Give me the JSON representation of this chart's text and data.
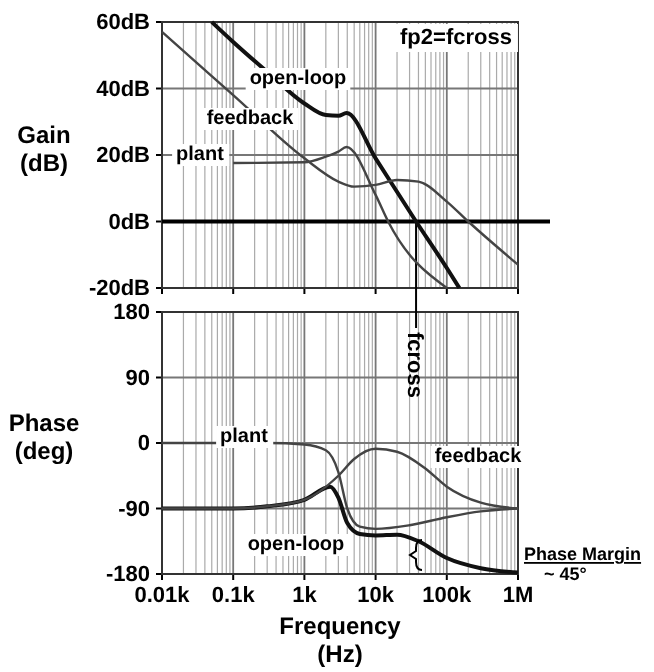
{
  "chart_data": [
    {
      "type": "line",
      "ylabel": "Gain\n(dB)",
      "log": "x",
      "xlim": [
        10,
        1000000
      ],
      "xticks": [
        10,
        100,
        1000,
        10000,
        100000,
        1000000
      ],
      "ylim": [
        -20,
        60
      ],
      "yticks": [
        {
          "value": -20,
          "label": "-20dB"
        },
        {
          "value": 0,
          "label": "0dB"
        },
        {
          "value": 20,
          "label": "20dB"
        },
        {
          "value": 40,
          "label": "40dB"
        },
        {
          "value": 60,
          "label": "60dB"
        }
      ],
      "tick_labels": "y",
      "grid": true,
      "line_style": "solid",
      "series": [
        {
          "name": "open-loop",
          "color": "#111111",
          "x": [
            50,
            100,
            300,
            1000,
            2000,
            3000,
            3900,
            10000,
            37000,
            100000,
            150000
          ],
          "values": [
            60,
            54,
            45,
            35.5,
            32,
            31.8,
            32.6,
            19,
            0,
            -14,
            -20
          ]
        },
        {
          "name": "feedback",
          "color": "#444444",
          "x": [
            10,
            100,
            1000,
            3000,
            5000,
            10000,
            20000,
            40000,
            100000,
            200000,
            1000000
          ],
          "values": [
            57,
            38,
            19,
            12,
            10.5,
            11,
            12.5,
            12,
            6,
            0,
            -13
          ]
        },
        {
          "name": "plant",
          "color": "#444444",
          "x": [
            100,
            1000,
            2000,
            3000,
            3900,
            10000,
            15000,
            100000
          ],
          "values": [
            17.6,
            17.8,
            19.5,
            21,
            22.4,
            8,
            0,
            -20
          ]
        }
      ],
      "ref_lines": [
        {
          "axis": "y",
          "value": 0,
          "label": null
        },
        {
          "axis": "x",
          "value": 37000,
          "label": null
        }
      ],
      "annotations": [
        "fp2=fcross"
      ]
    },
    {
      "type": "line",
      "ylabel": "Phase\n(deg)",
      "xlabel": "Frequency\n(Hz)",
      "log": "x",
      "xlim": [
        10,
        1000000
      ],
      "xticks": [
        {
          "value": 10,
          "label": "0.01k"
        },
        {
          "value": 100,
          "label": "0.1k"
        },
        {
          "value": 1000,
          "label": "1k"
        },
        {
          "value": 10000,
          "label": "10k"
        },
        {
          "value": 100000,
          "label": "100k"
        },
        {
          "value": 1000000,
          "label": "1M"
        }
      ],
      "ylim": [
        -180,
        180
      ],
      "yticks": [
        -180,
        -90,
        0,
        90,
        180
      ],
      "grid": true,
      "line_style": "solid",
      "series": [
        {
          "name": "open-loop",
          "color": "#111111",
          "x": [
            10,
            100,
            300,
            1000,
            2300,
            3000,
            4000,
            6000,
            10000,
            20000,
            40000,
            100000,
            300000,
            1000000
          ],
          "values": [
            -90,
            -90,
            -87,
            -78,
            -60,
            -75,
            -110,
            -125,
            -127,
            -126,
            -135,
            -158,
            -172,
            -178
          ]
        },
        {
          "name": "feedback",
          "color": "#444444",
          "x": [
            10,
            100,
            300,
            1000,
            3000,
            5000,
            10000,
            20000,
            50000,
            100000,
            300000,
            1000000
          ],
          "values": [
            -90,
            -90,
            -87,
            -78,
            -45,
            -22,
            -8,
            -12,
            -35,
            -60,
            -82,
            -90
          ]
        },
        {
          "name": "plant",
          "color": "#444444",
          "x": [
            10,
            300,
            1000,
            2000,
            3000,
            4000,
            6000,
            10000,
            30000,
            100000,
            300000,
            1000000
          ],
          "values": [
            0,
            0,
            -2,
            -10,
            -40,
            -90,
            -115,
            -118,
            -113,
            -102,
            -94,
            -90
          ]
        }
      ],
      "ref_lines": [
        {
          "axis": "x",
          "value": 37000,
          "label": "fcross"
        }
      ],
      "annotations": [
        "Phase Margin\n~ 45°"
      ]
    }
  ]
}
